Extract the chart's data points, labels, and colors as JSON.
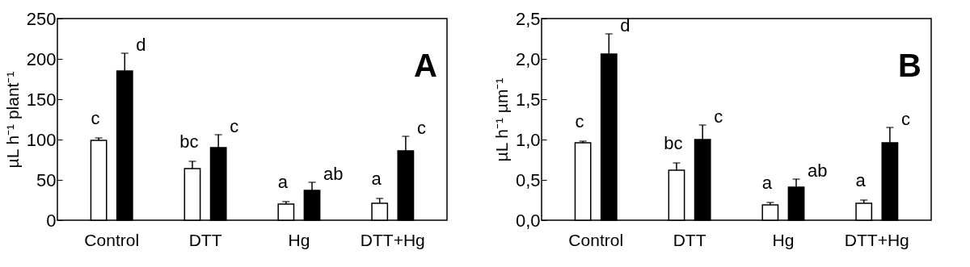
{
  "chart_data": [
    {
      "type": "bar",
      "ylabel": "µL h⁻¹ plant⁻¹",
      "categories": [
        "Control",
        "DTT",
        "Hg",
        "DTT+Hg"
      ],
      "ylim": [
        0,
        250
      ],
      "yticks": [
        0,
        50,
        100,
        150,
        200,
        250
      ],
      "series": [
        {
          "color": "#ffffff",
          "values": [
            99,
            64,
            20,
            21
          ],
          "errors": [
            [
              99,
              102
            ],
            [
              64,
              73
            ],
            [
              20,
              23
            ],
            [
              21,
              27
            ]
          ]
        },
        {
          "color": "#000000",
          "values": [
            185,
            90,
            37,
            86
          ],
          "errors": [
            [
              185,
              207
            ],
            [
              90,
              106
            ],
            [
              37,
              47
            ],
            [
              86,
              104
            ]
          ]
        }
      ],
      "annotations": [
        "A",
        "c",
        "d",
        "bc",
        "c",
        "a",
        "ab",
        "a",
        "c"
      ]
    },
    {
      "type": "bar",
      "ylabel": "µL h⁻¹ µm⁻¹",
      "categories": [
        "Control",
        "DTT",
        "Hg",
        "DTT+Hg"
      ],
      "ylim": [
        0,
        2.5
      ],
      "yticks": [
        {
          "value": 0,
          "label": "0,0"
        },
        {
          "value": 0.5,
          "label": "0,5"
        },
        {
          "value": 1,
          "label": "1,0"
        },
        {
          "value": 1.5,
          "label": "1,5"
        },
        {
          "value": 2,
          "label": "2,0"
        },
        {
          "value": 2.5,
          "label": "2,5"
        }
      ],
      "series": [
        {
          "color": "#ffffff",
          "values": [
            0.96,
            0.62,
            0.19,
            0.21
          ],
          "errors": [
            [
              0.96,
              0.98
            ],
            [
              0.62,
              0.71
            ],
            [
              0.19,
              0.22
            ],
            [
              0.21,
              0.25
            ]
          ]
        },
        {
          "color": "#000000",
          "values": [
            2.06,
            1.0,
            0.41,
            0.96
          ],
          "errors": [
            [
              2.06,
              2.31
            ],
            [
              1.0,
              1.18
            ],
            [
              0.41,
              0.51
            ],
            [
              0.96,
              1.15
            ]
          ]
        }
      ],
      "annotations": [
        "B",
        "c",
        "d",
        "bc",
        "c",
        "a",
        "ab",
        "a",
        "c"
      ]
    }
  ]
}
